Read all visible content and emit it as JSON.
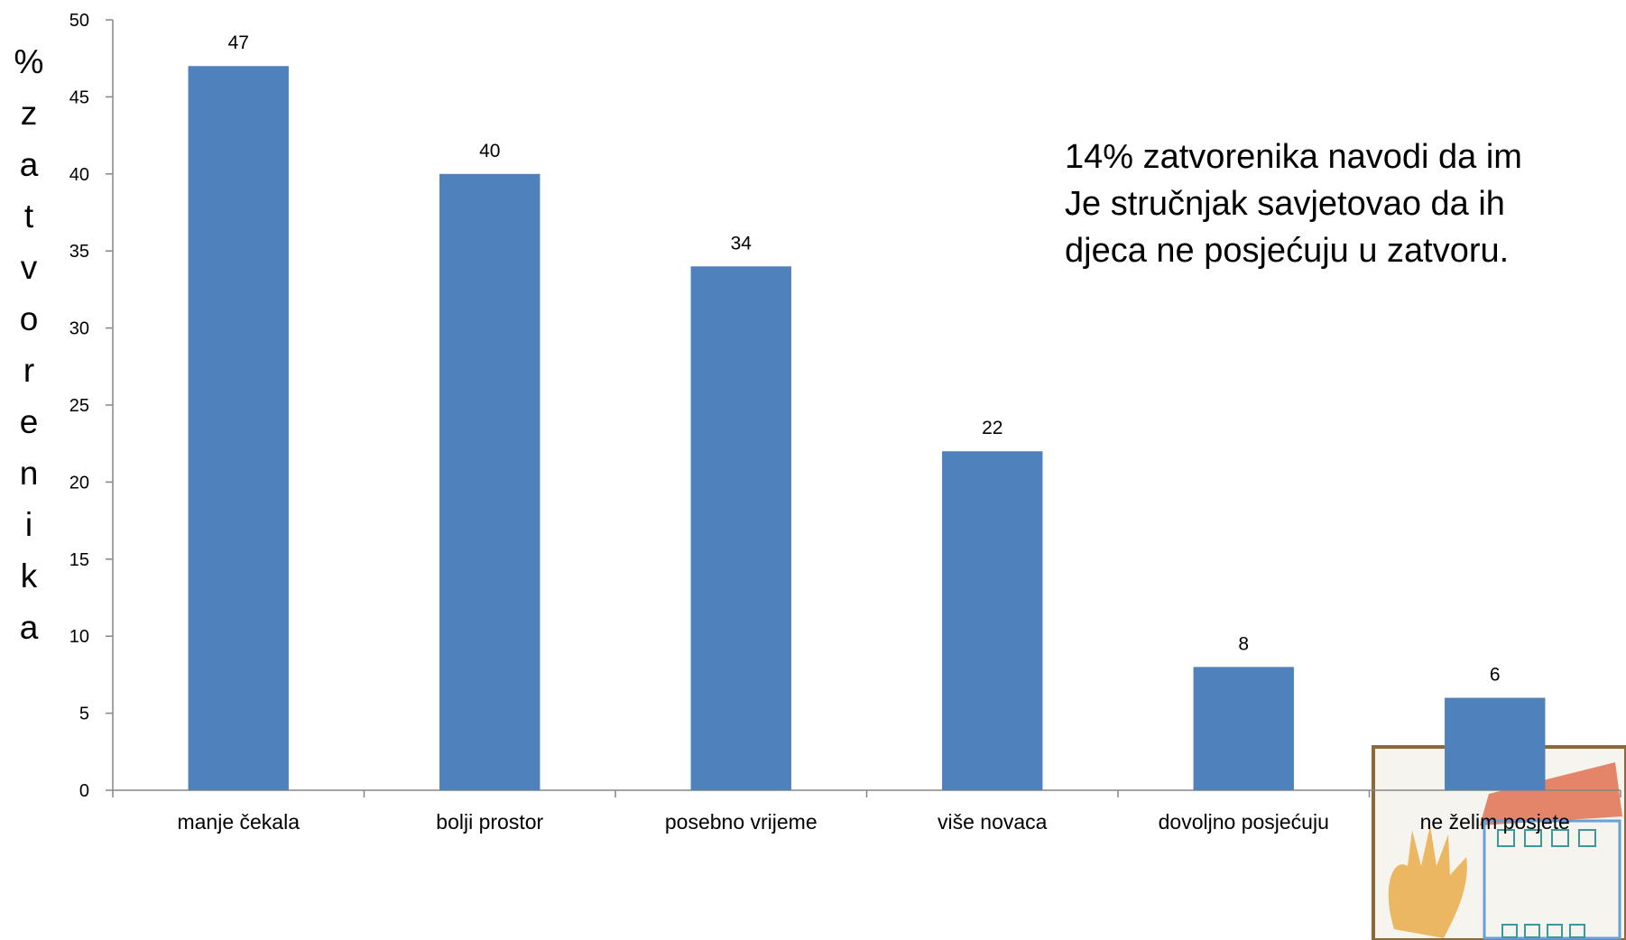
{
  "chart_data": {
    "type": "bar",
    "categories": [
      "manje čekala",
      "bolji  prostor",
      "posebno vrijeme",
      "više novaca",
      "dovoljno posjećuju",
      "ne želim posjete"
    ],
    "values": [
      47,
      40,
      34,
      22,
      8,
      6
    ],
    "ylabel": "%\nz\na\nt\nv\no\nr\ne\nn\ni\nk\na",
    "ylim": [
      0,
      50
    ],
    "yticks": [
      0,
      5,
      10,
      15,
      20,
      25,
      30,
      35,
      40,
      45,
      50
    ],
    "bar_color": "#4f81bd",
    "grid": false,
    "annotation": [
      "14% zatvorenika navodi da im",
      "Je stručnjak savjetovao da ih",
      "djeca ne posjećuju u zatvoru."
    ]
  }
}
